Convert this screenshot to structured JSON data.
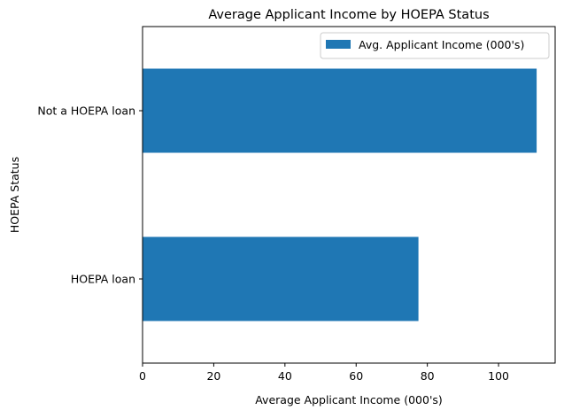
{
  "chart_data": {
    "type": "bar",
    "orientation": "horizontal",
    "title": "Average Applicant Income by HOEPA Status",
    "xlabel": "Average Applicant Income (000's)",
    "ylabel": "HOEPA Status",
    "categories": [
      "HOEPA loan",
      "Not a HOEPA loan"
    ],
    "series": [
      {
        "name": "Avg. Applicant Income (000's)",
        "values": [
          77.5,
          110.7
        ],
        "color": "#1f77b4"
      }
    ],
    "xlim": [
      0,
      115.9
    ],
    "xticks": [
      0,
      20,
      40,
      60,
      80,
      100
    ],
    "grid": false,
    "legend_position": "top-right"
  }
}
